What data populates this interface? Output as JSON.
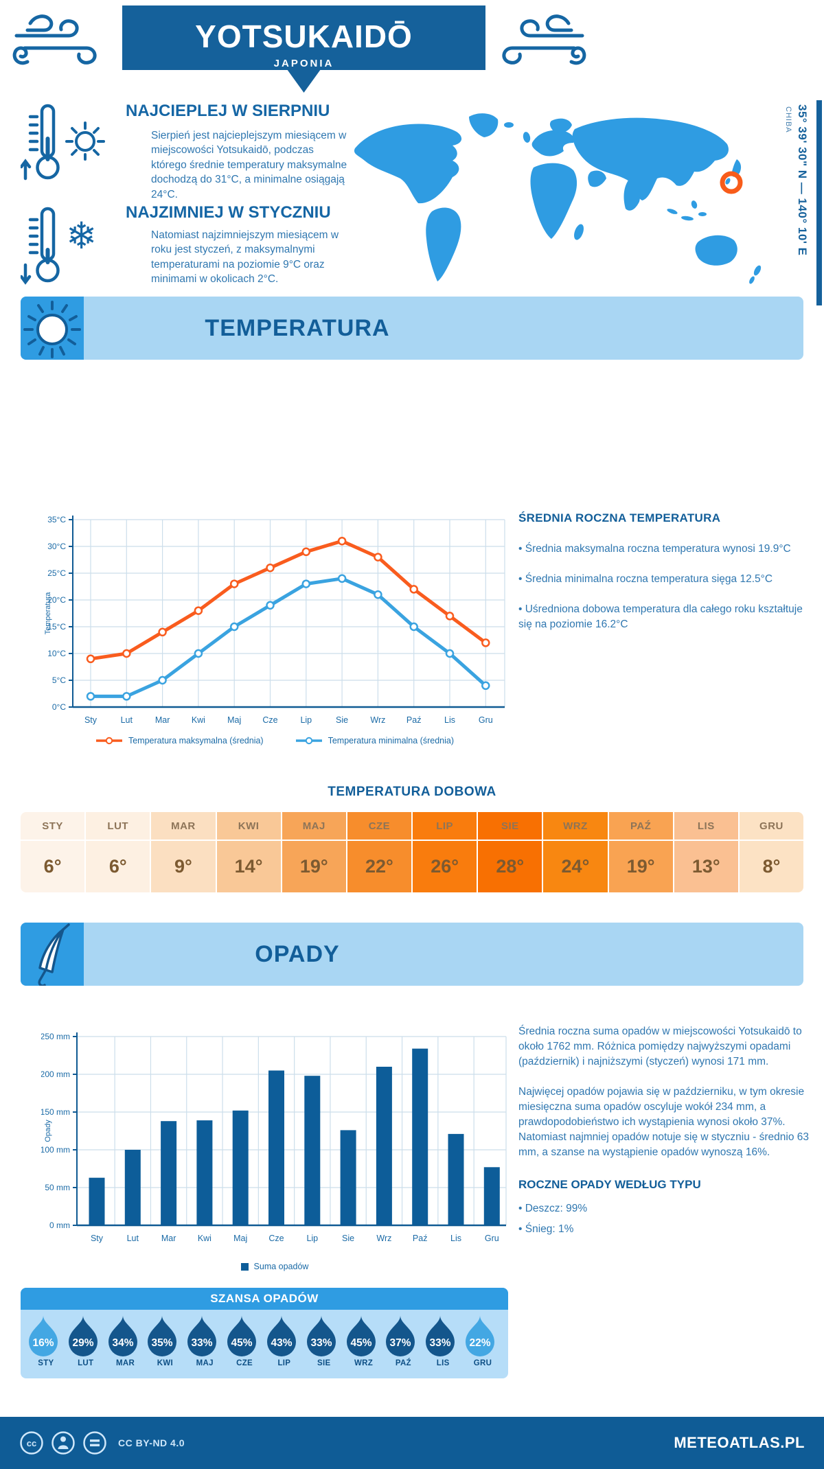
{
  "header": {
    "title": "YOTSUKAIDŌ",
    "subtitle": "JAPONIA"
  },
  "location": {
    "coordinates": "35° 39' 30\" N — 140° 10' E",
    "region": "CHIBA"
  },
  "highlights": {
    "warm": {
      "title": "NAJCIEPLEJ W SIERPNIU",
      "text": "Sierpień jest najcieplejszym miesiącem w miejscowości Yotsukaidō, podczas którego średnie temperatury maksymalne dochodzą do 31°C, a minimalne osiągają 24°C."
    },
    "cold": {
      "title": "NAJZIMNIEJ W STYCZNIU",
      "text": "Natomiast najzimniejszym miesiącem w roku jest styczeń, z maksymalnymi temperaturami na poziomie 9°C oraz minimami w okolicach 2°C."
    }
  },
  "temperature": {
    "section_title": "TEMPERATURA",
    "stats_title": "ŚREDNIA ROCZNA TEMPERATURA",
    "stats": [
      "• Średnia maksymalna roczna temperatura wynosi 19.9°C",
      "• Średnia minimalna roczna temperatura sięga 12.5°C",
      "• Uśredniona dobowa temperatura dla całego roku kształtuje się na poziomie 16.2°C"
    ],
    "daily_title": "TEMPERATURA DOBOWA"
  },
  "daily_table": {
    "months": [
      "STY",
      "LUT",
      "MAR",
      "KWI",
      "MAJ",
      "CZE",
      "LIP",
      "SIE",
      "WRZ",
      "PAŹ",
      "LIS",
      "GRU"
    ],
    "values": [
      "6°",
      "6°",
      "9°",
      "14°",
      "19°",
      "22°",
      "26°",
      "28°",
      "24°",
      "19°",
      "13°",
      "8°"
    ],
    "colors": [
      "#fdf3e9",
      "#fdf0e2",
      "#fbdfc1",
      "#f9c897",
      "#f7a558",
      "#f78d2c",
      "#f97c0d",
      "#f87002",
      "#f88711",
      "#f9a352",
      "#fac092",
      "#fce2c4"
    ]
  },
  "precipitation": {
    "section_title": "OPADY",
    "paragraph1": "Średnia roczna suma opadów w miejscowości Yotsukaidō to około 1762 mm. Różnica pomiędzy najwyższymi opadami (październik) i najniższymi (styczeń) wynosi 171 mm.",
    "paragraph2": "Najwięcej opadów pojawia się w październiku, w tym okresie miesięczna suma opadów oscyluje wokół 234 mm, a prawdopodobieństwo ich wystąpienia wynosi około 37%. Natomiast najmniej opadów notuje się w styczniu - średnio 63 mm, a szanse na wystąpienie opadów wynoszą 16%.",
    "types_title": "ROCZNE OPADY WEDŁUG TYPU",
    "types": [
      "• Deszcz: 99%",
      "• Śnieg: 1%"
    ]
  },
  "rain_chance": {
    "title": "SZANSA OPADÓW",
    "months": [
      "STY",
      "LUT",
      "MAR",
      "KWI",
      "MAJ",
      "CZE",
      "LIP",
      "SIE",
      "WRZ",
      "PAŹ",
      "LIS",
      "GRU"
    ],
    "values": [
      "16%",
      "29%",
      "34%",
      "35%",
      "33%",
      "45%",
      "43%",
      "33%",
      "45%",
      "37%",
      "33%",
      "22%"
    ],
    "light_indices": [
      0,
      11
    ],
    "dark_color": "#14568c",
    "light_color": "#43a7e3"
  },
  "footer": {
    "license": "CC BY-ND 4.0",
    "site": "METEOATLAS.PL"
  },
  "colors": {
    "accent_dark_blue": "#15619b",
    "band_blue": "#a9d6f3",
    "icon_blue": "#2f9ce2",
    "marker_orange": "#f85c1a"
  },
  "chart_data": [
    {
      "type": "line",
      "title": "TEMPERATURA",
      "categories": [
        "Sty",
        "Lut",
        "Mar",
        "Kwi",
        "Maj",
        "Cze",
        "Lip",
        "Sie",
        "Wrz",
        "Paź",
        "Lis",
        "Gru"
      ],
      "ylabel": "Temperatura",
      "ylim": [
        0,
        35
      ],
      "ytick_step": 5,
      "ytick_suffix": "°C",
      "grid": true,
      "legend_position": "bottom",
      "series": [
        {
          "name": "Temperatura maksymalna (średnia)",
          "color": "#f95c1e",
          "values": [
            9,
            10,
            14,
            18,
            23,
            26,
            29,
            31,
            28,
            22,
            17,
            12
          ]
        },
        {
          "name": "Temperatura minimalna (średnia)",
          "color": "#3aa3e0",
          "values": [
            2,
            2,
            5,
            10,
            15,
            19,
            23,
            24,
            21,
            15,
            10,
            4
          ]
        }
      ]
    },
    {
      "type": "bar",
      "title": "OPADY",
      "categories": [
        "Sty",
        "Lut",
        "Mar",
        "Kwi",
        "Maj",
        "Cze",
        "Lip",
        "Sie",
        "Wrz",
        "Paź",
        "Lis",
        "Gru"
      ],
      "ylabel": "Opady",
      "ylim": [
        0,
        250
      ],
      "ytick_step": 50,
      "ytick_suffix": " mm",
      "grid": true,
      "legend_position": "bottom",
      "series": [
        {
          "name": "Suma opadów",
          "color": "#0d5d99",
          "values": [
            63,
            100,
            138,
            139,
            152,
            205,
            198,
            126,
            210,
            234,
            121,
            77
          ]
        }
      ]
    }
  ]
}
